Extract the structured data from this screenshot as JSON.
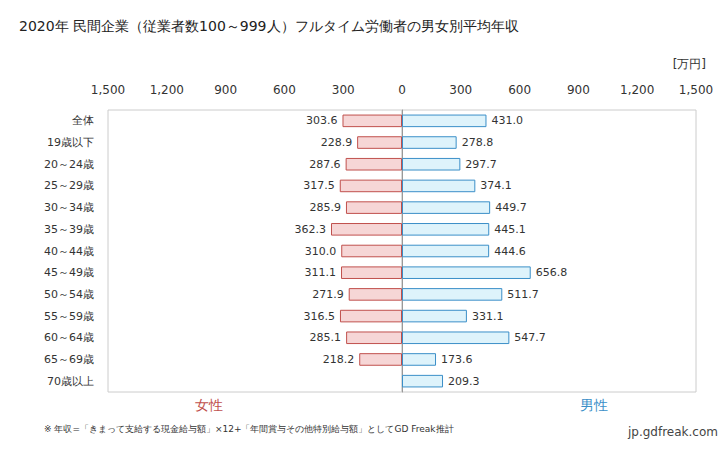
{
  "chart_data": {
    "type": "bar",
    "orientation": "horizontal",
    "title": "2020年 民間企業（従業者数100～999人）フルタイム労働者の男女別平均年収",
    "unit_label": "[万円]",
    "note": "※ 年収=「きまって支給する現金給与額」×12+「年間賞与その他特別給与額」としてGD Freak推計",
    "source": "jp.gdfreak.com",
    "categories": [
      "全体",
      "19歳以下",
      "20～24歳",
      "25～29歳",
      "30～34歳",
      "35～39歳",
      "40～44歳",
      "45～49歳",
      "50～54歳",
      "55～59歳",
      "60～64歳",
      "65～69歳",
      "70歳以上"
    ],
    "series": [
      {
        "name": "女性",
        "color": "#c0504d",
        "values": [
          303.6,
          228.9,
          287.6,
          317.5,
          285.9,
          362.3,
          310.0,
          311.1,
          271.9,
          316.5,
          285.1,
          218.2,
          null
        ],
        "value_labels": [
          "303.6",
          "228.9",
          "287.6",
          "317.5",
          "285.9",
          "362.3",
          "310.0",
          "311.1",
          "271.9",
          "316.5",
          "285.1",
          "218.2",
          null
        ]
      },
      {
        "name": "男性",
        "color": "#3b8fc8",
        "values": [
          431.0,
          278.8,
          297.7,
          374.1,
          449.7,
          445.1,
          444.6,
          656.8,
          511.7,
          331.1,
          547.7,
          173.6,
          209.3
        ],
        "value_labels": [
          "431.0",
          "278.8",
          "297.7",
          "374.1",
          "449.7",
          "445.1",
          "444.6",
          "656.8",
          "511.7",
          "331.1",
          "547.7",
          "173.6",
          "209.3"
        ]
      }
    ],
    "xlim": [
      0,
      1500
    ],
    "xticks": [
      0,
      300,
      600,
      900,
      1200,
      1500
    ],
    "data_labels": true,
    "grid": false
  }
}
